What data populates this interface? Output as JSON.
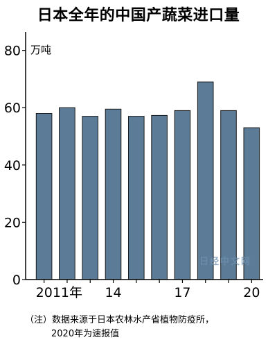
{
  "title": "日本全年的中国产蔬菜进口量",
  "watermark": "日经中文网",
  "note": {
    "line1": "（注）数据来源于日本农林水产省植物防疫所，",
    "line2": "2020年为速报值"
  },
  "chart_data": {
    "type": "bar",
    "title": "日本全年的中国产蔬菜进口量",
    "unit_label": "万吨",
    "categories": [
      "2011",
      "2012",
      "2013",
      "2014",
      "2015",
      "2016",
      "2017",
      "2018",
      "2019",
      "2020"
    ],
    "x_tick_labels": [
      {
        "index": 0,
        "label": "2011年"
      },
      {
        "index": 3,
        "label": "14"
      },
      {
        "index": 6,
        "label": "17"
      },
      {
        "index": 9,
        "label": "20"
      }
    ],
    "values": [
      58,
      60,
      57,
      59.5,
      57,
      57.3,
      59,
      69,
      59,
      53
    ],
    "ylim": [
      0,
      85
    ],
    "yticks": [
      0,
      20,
      40,
      60,
      80
    ],
    "grid": false,
    "bar_color": "#5b7b96"
  }
}
